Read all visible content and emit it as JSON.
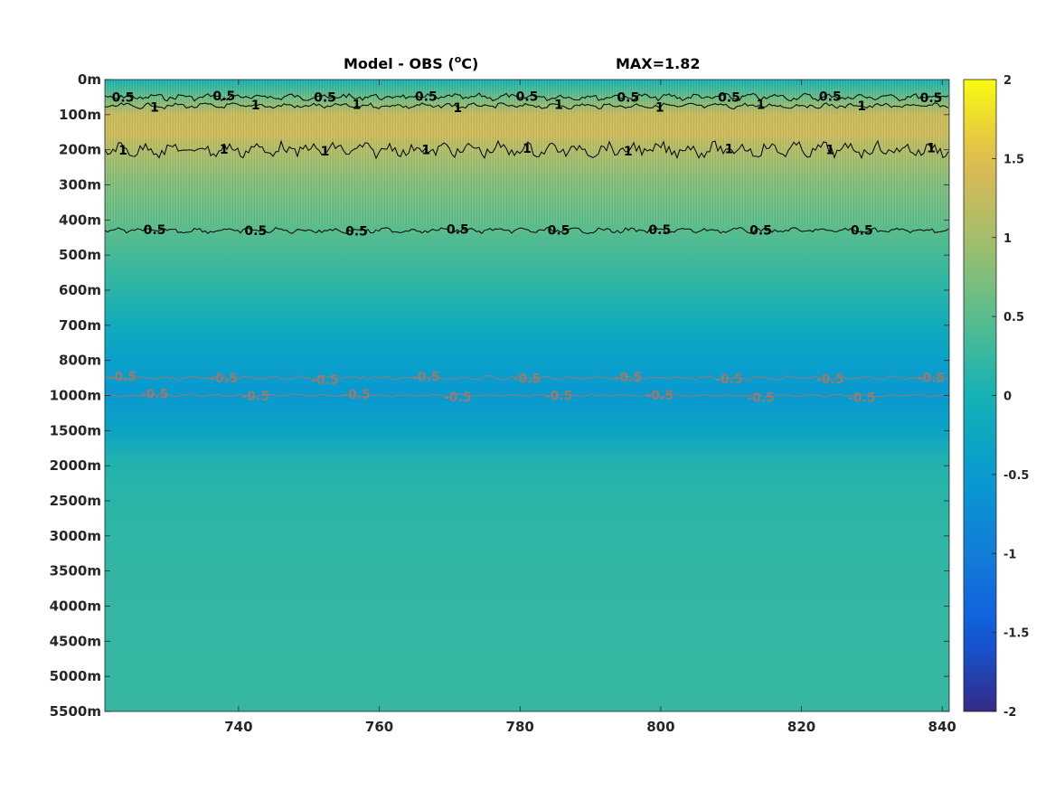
{
  "title": {
    "prefix": "Model - OBS (",
    "superscript": "o",
    "suffix": "C)",
    "max_text": "MAX=1.82"
  },
  "chart_data": {
    "type": "heatmap",
    "title": "Model - OBS (oC)",
    "annotation": "MAX=1.82",
    "xlabel": "",
    "ylabel": "",
    "xlim": [
      721,
      841
    ],
    "x_ticks": [
      740,
      760,
      780,
      800,
      820,
      840
    ],
    "y_tick_labels": [
      "0m",
      "100m",
      "200m",
      "300m",
      "400m",
      "500m",
      "600m",
      "700m",
      "800m",
      "1000m",
      "1500m",
      "2000m",
      "2500m",
      "3000m",
      "3500m",
      "4000m",
      "4500m",
      "5000m",
      "5500m"
    ],
    "y_axis_note": "stretched depth axis (0-1000m upper, 1000-5500m lower), depth increasing downward",
    "colorbar": {
      "min": -2,
      "max": 2,
      "ticks": [
        2,
        1.5,
        1,
        0.5,
        0,
        -0.5,
        -1,
        -1.5,
        -2
      ],
      "colormap": "parula"
    },
    "depth_profile": [
      {
        "depth": "0m",
        "value": 0.0
      },
      {
        "depth": "50m",
        "value": 0.6
      },
      {
        "depth": "100m",
        "value": 1.3
      },
      {
        "depth": "150m",
        "value": 1.35
      },
      {
        "depth": "200m",
        "value": 1.1
      },
      {
        "depth": "300m",
        "value": 0.75
      },
      {
        "depth": "400m",
        "value": 0.55
      },
      {
        "depth": "500m",
        "value": 0.35
      },
      {
        "depth": "600m",
        "value": 0.15
      },
      {
        "depth": "700m",
        "value": -0.15
      },
      {
        "depth": "800m",
        "value": -0.4
      },
      {
        "depth": "1000m",
        "value": -0.55
      },
      {
        "depth": "1500m",
        "value": -0.3
      },
      {
        "depth": "2000m",
        "value": 0.1
      },
      {
        "depth": "3000m",
        "value": 0.2
      },
      {
        "depth": "5500m",
        "value": 0.25
      }
    ],
    "contours": [
      {
        "level": 0.5,
        "approx_depth": "50m",
        "color": "#000000"
      },
      {
        "level": 1,
        "approx_depth": "75m",
        "color": "#000000"
      },
      {
        "level": 1,
        "approx_depth": "200m",
        "color": "#000000"
      },
      {
        "level": 0.5,
        "approx_depth": "430m",
        "color": "#000000"
      },
      {
        "level": -0.5,
        "approx_depth": "900m",
        "color": "#9a7b70"
      },
      {
        "level": -0.5,
        "approx_depth": "1000m",
        "color": "#9a7b70"
      }
    ],
    "contour_label_texts": {
      "pos_half": "0.5",
      "one": "1",
      "neg_half": "-0.5"
    },
    "grid": false
  }
}
